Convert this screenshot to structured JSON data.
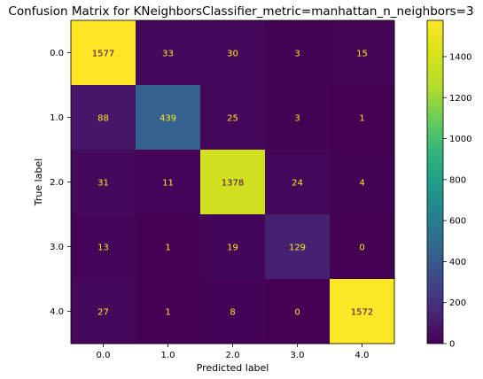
{
  "chart_data": {
    "type": "heatmap",
    "title": "Confusion Matrix for KNeighborsClassifier_metric=manhattan_n_neighbors=3",
    "xlabel": "Predicted label",
    "ylabel": "True label",
    "x_categories": [
      "0.0",
      "1.0",
      "2.0",
      "3.0",
      "4.0"
    ],
    "y_categories": [
      "0.0",
      "1.0",
      "2.0",
      "3.0",
      "4.0"
    ],
    "values": [
      [
        1577,
        33,
        30,
        3,
        15
      ],
      [
        88,
        439,
        25,
        3,
        1
      ],
      [
        31,
        11,
        1378,
        24,
        4
      ],
      [
        13,
        1,
        19,
        129,
        0
      ],
      [
        27,
        1,
        8,
        0,
        1572
      ]
    ],
    "colormap": "viridis",
    "colorbar": {
      "ticks": [
        0,
        200,
        400,
        600,
        800,
        1000,
        1200,
        1400
      ],
      "tick_labels": [
        "0",
        "200",
        "400",
        "600",
        "800",
        "1000",
        "1200",
        "1400"
      ],
      "range": [
        0,
        1577
      ]
    },
    "grid": false,
    "label_colors": {
      "on_dark": "#fde725",
      "on_light": "#440154"
    }
  }
}
